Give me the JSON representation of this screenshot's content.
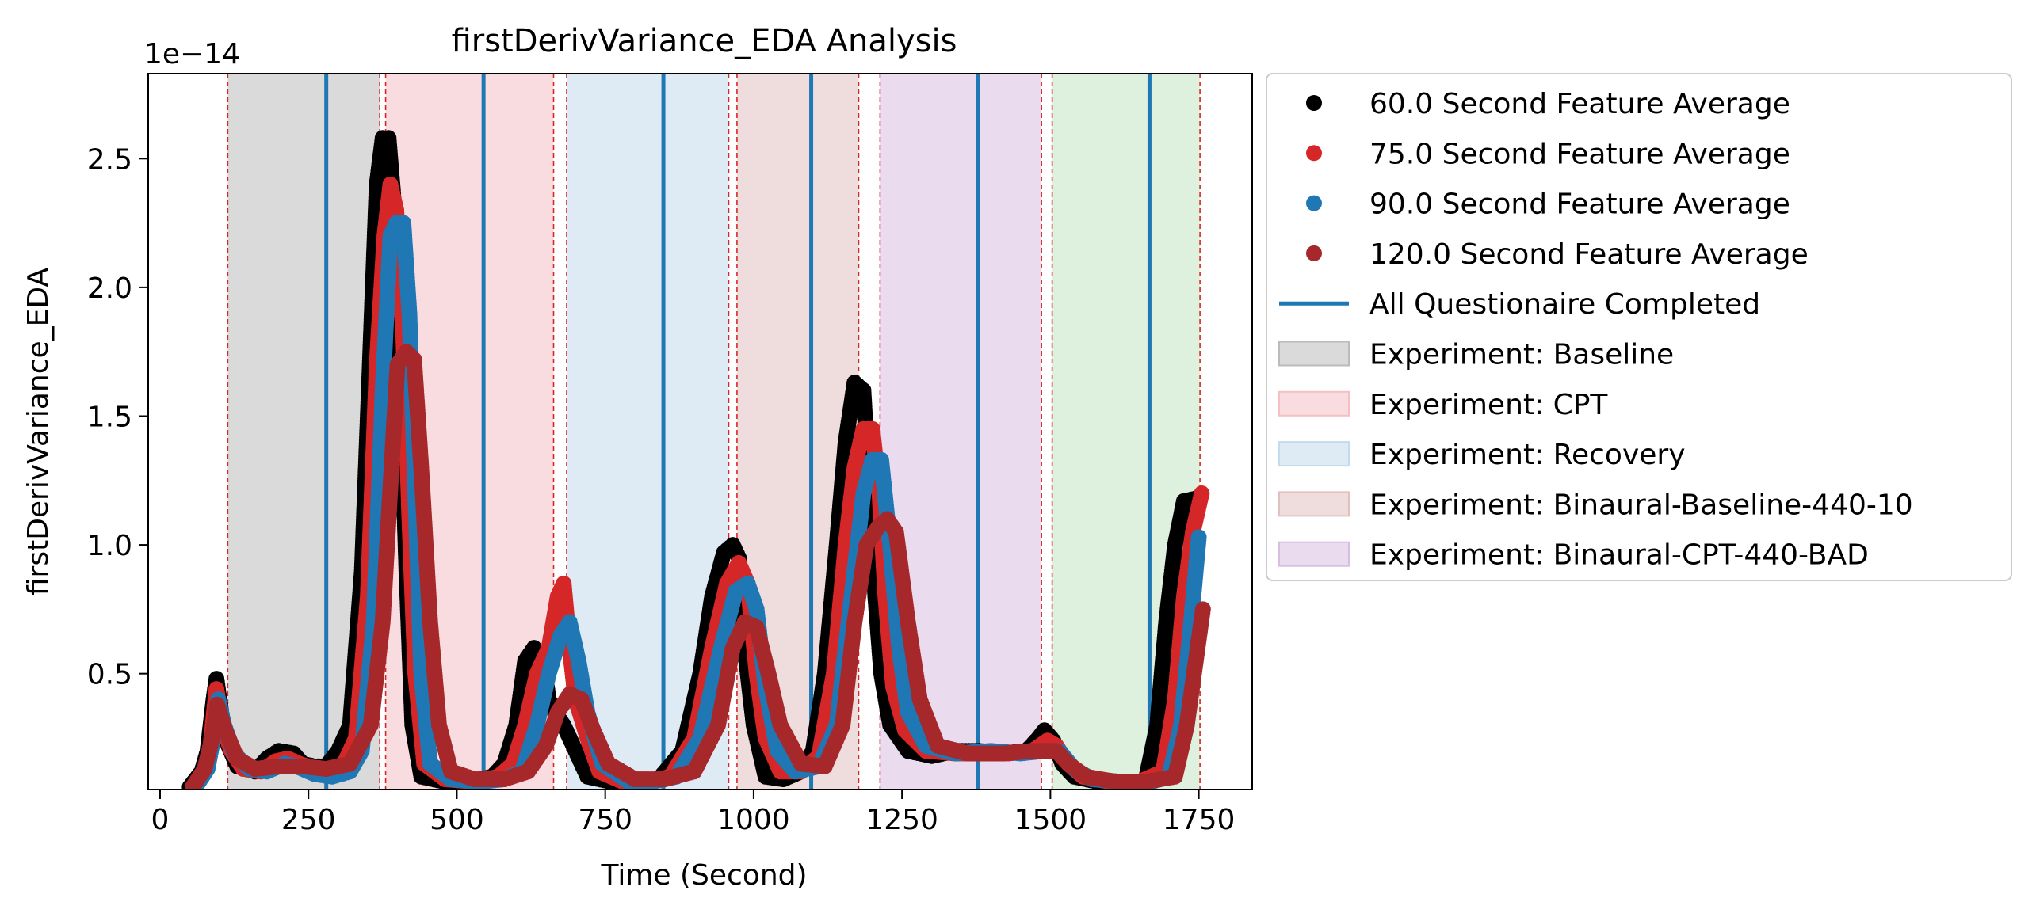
{
  "chart_data": {
    "type": "scatter",
    "title": "firstDerivVariance_EDA Analysis",
    "xlabel": "Time (Second)",
    "ylabel": "firstDerivVariance_EDA",
    "y_offset_label": "1e−14",
    "xlim": [
      -20,
      1840
    ],
    "ylim": [
      0.05,
      2.83
    ],
    "xticks": [
      0,
      250,
      500,
      750,
      1000,
      1250,
      1500,
      1750
    ],
    "xtick_labels": [
      "0",
      "250",
      "500",
      "750",
      "1000",
      "1250",
      "1500",
      "1750"
    ],
    "yticks": [
      0.5,
      1.0,
      1.5,
      2.0,
      2.5
    ],
    "ytick_labels": [
      "0.5",
      "1.0",
      "1.5",
      "2.0",
      "2.5"
    ],
    "grid": false,
    "legend_position": "outside-right",
    "series": [
      {
        "name": "60.0 Second Feature Average",
        "color": "#000000",
        "points": [
          [
            50,
            0.06
          ],
          [
            70,
            0.12
          ],
          [
            80,
            0.2
          ],
          [
            90,
            0.4
          ],
          [
            95,
            0.48
          ],
          [
            105,
            0.32
          ],
          [
            115,
            0.22
          ],
          [
            130,
            0.14
          ],
          [
            160,
            0.12
          ],
          [
            180,
            0.17
          ],
          [
            200,
            0.2
          ],
          [
            225,
            0.19
          ],
          [
            240,
            0.15
          ],
          [
            260,
            0.14
          ],
          [
            280,
            0.14
          ],
          [
            300,
            0.2
          ],
          [
            320,
            0.3
          ],
          [
            340,
            0.9
          ],
          [
            355,
            1.8
          ],
          [
            365,
            2.4
          ],
          [
            375,
            2.58
          ],
          [
            385,
            2.58
          ],
          [
            395,
            2.3
          ],
          [
            405,
            1.6
          ],
          [
            415,
            0.9
          ],
          [
            425,
            0.3
          ],
          [
            440,
            0.1
          ],
          [
            480,
            0.08
          ],
          [
            520,
            0.08
          ],
          [
            560,
            0.1
          ],
          [
            580,
            0.15
          ],
          [
            600,
            0.3
          ],
          [
            615,
            0.55
          ],
          [
            630,
            0.6
          ],
          [
            645,
            0.55
          ],
          [
            655,
            0.4
          ],
          [
            665,
            0.35
          ],
          [
            680,
            0.3
          ],
          [
            700,
            0.2
          ],
          [
            720,
            0.1
          ],
          [
            760,
            0.08
          ],
          [
            800,
            0.08
          ],
          [
            840,
            0.09
          ],
          [
            880,
            0.2
          ],
          [
            910,
            0.5
          ],
          [
            930,
            0.8
          ],
          [
            950,
            0.97
          ],
          [
            965,
            1.0
          ],
          [
            975,
            0.95
          ],
          [
            985,
            0.6
          ],
          [
            1000,
            0.3
          ],
          [
            1020,
            0.1
          ],
          [
            1050,
            0.09
          ],
          [
            1080,
            0.12
          ],
          [
            1100,
            0.2
          ],
          [
            1120,
            0.5
          ],
          [
            1140,
            1.0
          ],
          [
            1155,
            1.4
          ],
          [
            1170,
            1.63
          ],
          [
            1185,
            1.6
          ],
          [
            1195,
            1.2
          ],
          [
            1205,
            0.8
          ],
          [
            1215,
            0.5
          ],
          [
            1230,
            0.3
          ],
          [
            1260,
            0.2
          ],
          [
            1300,
            0.18
          ],
          [
            1340,
            0.2
          ],
          [
            1380,
            0.2
          ],
          [
            1420,
            0.19
          ],
          [
            1460,
            0.2
          ],
          [
            1480,
            0.25
          ],
          [
            1490,
            0.28
          ],
          [
            1505,
            0.24
          ],
          [
            1520,
            0.15
          ],
          [
            1540,
            0.1
          ],
          [
            1580,
            0.08
          ],
          [
            1620,
            0.08
          ],
          [
            1660,
            0.08
          ],
          [
            1680,
            0.3
          ],
          [
            1695,
            0.7
          ],
          [
            1710,
            1.0
          ],
          [
            1725,
            1.17
          ],
          [
            1745,
            1.18
          ]
        ]
      },
      {
        "name": "75.0 Second Feature Average",
        "color": "#d62728",
        "points": [
          [
            55,
            0.06
          ],
          [
            75,
            0.12
          ],
          [
            85,
            0.22
          ],
          [
            95,
            0.44
          ],
          [
            105,
            0.3
          ],
          [
            120,
            0.2
          ],
          [
            140,
            0.13
          ],
          [
            170,
            0.12
          ],
          [
            195,
            0.16
          ],
          [
            215,
            0.17
          ],
          [
            235,
            0.15
          ],
          [
            260,
            0.13
          ],
          [
            290,
            0.13
          ],
          [
            310,
            0.15
          ],
          [
            330,
            0.25
          ],
          [
            350,
            0.8
          ],
          [
            365,
            1.7
          ],
          [
            378,
            2.2
          ],
          [
            388,
            2.4
          ],
          [
            398,
            2.3
          ],
          [
            410,
            1.8
          ],
          [
            420,
            1.1
          ],
          [
            430,
            0.5
          ],
          [
            445,
            0.15
          ],
          [
            480,
            0.09
          ],
          [
            530,
            0.08
          ],
          [
            570,
            0.1
          ],
          [
            595,
            0.15
          ],
          [
            615,
            0.3
          ],
          [
            635,
            0.5
          ],
          [
            655,
            0.6
          ],
          [
            670,
            0.8
          ],
          [
            680,
            0.85
          ],
          [
            690,
            0.6
          ],
          [
            700,
            0.4
          ],
          [
            720,
            0.25
          ],
          [
            740,
            0.12
          ],
          [
            780,
            0.08
          ],
          [
            820,
            0.08
          ],
          [
            860,
            0.1
          ],
          [
            900,
            0.25
          ],
          [
            930,
            0.6
          ],
          [
            955,
            0.85
          ],
          [
            975,
            0.93
          ],
          [
            990,
            0.85
          ],
          [
            1005,
            0.5
          ],
          [
            1020,
            0.25
          ],
          [
            1045,
            0.12
          ],
          [
            1080,
            0.12
          ],
          [
            1110,
            0.18
          ],
          [
            1135,
            0.5
          ],
          [
            1155,
            1.0
          ],
          [
            1170,
            1.3
          ],
          [
            1185,
            1.45
          ],
          [
            1200,
            1.45
          ],
          [
            1212,
            1.2
          ],
          [
            1222,
            0.8
          ],
          [
            1235,
            0.45
          ],
          [
            1255,
            0.28
          ],
          [
            1290,
            0.2
          ],
          [
            1340,
            0.19
          ],
          [
            1380,
            0.19
          ],
          [
            1430,
            0.19
          ],
          [
            1470,
            0.2
          ],
          [
            1495,
            0.24
          ],
          [
            1510,
            0.22
          ],
          [
            1530,
            0.15
          ],
          [
            1555,
            0.1
          ],
          [
            1600,
            0.08
          ],
          [
            1650,
            0.08
          ],
          [
            1690,
            0.12
          ],
          [
            1710,
            0.4
          ],
          [
            1725,
            0.8
          ],
          [
            1740,
            1.05
          ],
          [
            1755,
            1.2
          ]
        ]
      },
      {
        "name": "90.0 Second Feature Average",
        "color": "#1f77b4",
        "points": [
          [
            60,
            0.06
          ],
          [
            80,
            0.13
          ],
          [
            90,
            0.25
          ],
          [
            98,
            0.4
          ],
          [
            108,
            0.3
          ],
          [
            125,
            0.19
          ],
          [
            150,
            0.13
          ],
          [
            180,
            0.12
          ],
          [
            210,
            0.15
          ],
          [
            230,
            0.14
          ],
          [
            260,
            0.11
          ],
          [
            290,
            0.1
          ],
          [
            320,
            0.12
          ],
          [
            340,
            0.2
          ],
          [
            360,
            0.7
          ],
          [
            375,
            1.6
          ],
          [
            388,
            2.2
          ],
          [
            398,
            2.25
          ],
          [
            410,
            2.25
          ],
          [
            420,
            1.9
          ],
          [
            430,
            1.2
          ],
          [
            440,
            0.5
          ],
          [
            455,
            0.15
          ],
          [
            490,
            0.09
          ],
          [
            540,
            0.08
          ],
          [
            580,
            0.09
          ],
          [
            610,
            0.12
          ],
          [
            635,
            0.3
          ],
          [
            655,
            0.5
          ],
          [
            675,
            0.65
          ],
          [
            690,
            0.7
          ],
          [
            705,
            0.55
          ],
          [
            720,
            0.35
          ],
          [
            745,
            0.15
          ],
          [
            790,
            0.08
          ],
          [
            830,
            0.08
          ],
          [
            870,
            0.1
          ],
          [
            910,
            0.25
          ],
          [
            945,
            0.6
          ],
          [
            970,
            0.82
          ],
          [
            990,
            0.85
          ],
          [
            1005,
            0.75
          ],
          [
            1020,
            0.45
          ],
          [
            1040,
            0.2
          ],
          [
            1070,
            0.12
          ],
          [
            1110,
            0.14
          ],
          [
            1140,
            0.3
          ],
          [
            1165,
            0.8
          ],
          [
            1185,
            1.2
          ],
          [
            1200,
            1.33
          ],
          [
            1215,
            1.33
          ],
          [
            1230,
            1.0
          ],
          [
            1245,
            0.6
          ],
          [
            1260,
            0.35
          ],
          [
            1290,
            0.22
          ],
          [
            1340,
            0.19
          ],
          [
            1400,
            0.2
          ],
          [
            1450,
            0.19
          ],
          [
            1490,
            0.2
          ],
          [
            1515,
            0.2
          ],
          [
            1540,
            0.13
          ],
          [
            1570,
            0.09
          ],
          [
            1620,
            0.08
          ],
          [
            1670,
            0.08
          ],
          [
            1700,
            0.1
          ],
          [
            1720,
            0.3
          ],
          [
            1735,
            0.65
          ],
          [
            1750,
            1.03
          ]
        ]
      },
      {
        "name": "120.0 Second Feature Average",
        "color": "#a6282b",
        "points": [
          [
            55,
            0.06
          ],
          [
            75,
            0.13
          ],
          [
            88,
            0.25
          ],
          [
            96,
            0.38
          ],
          [
            110,
            0.28
          ],
          [
            130,
            0.17
          ],
          [
            160,
            0.13
          ],
          [
            200,
            0.14
          ],
          [
            240,
            0.14
          ],
          [
            280,
            0.13
          ],
          [
            320,
            0.15
          ],
          [
            355,
            0.3
          ],
          [
            375,
            0.7
          ],
          [
            390,
            1.3
          ],
          [
            400,
            1.7
          ],
          [
            415,
            1.75
          ],
          [
            428,
            1.72
          ],
          [
            440,
            1.3
          ],
          [
            455,
            0.7
          ],
          [
            470,
            0.3
          ],
          [
            490,
            0.12
          ],
          [
            530,
            0.09
          ],
          [
            580,
            0.09
          ],
          [
            620,
            0.12
          ],
          [
            650,
            0.22
          ],
          [
            670,
            0.35
          ],
          [
            690,
            0.42
          ],
          [
            710,
            0.4
          ],
          [
            730,
            0.28
          ],
          [
            755,
            0.15
          ],
          [
            800,
            0.09
          ],
          [
            850,
            0.09
          ],
          [
            900,
            0.12
          ],
          [
            940,
            0.3
          ],
          [
            965,
            0.6
          ],
          [
            985,
            0.7
          ],
          [
            1005,
            0.68
          ],
          [
            1025,
            0.5
          ],
          [
            1045,
            0.3
          ],
          [
            1080,
            0.15
          ],
          [
            1120,
            0.14
          ],
          [
            1150,
            0.3
          ],
          [
            1170,
            0.7
          ],
          [
            1190,
            1.0
          ],
          [
            1210,
            1.07
          ],
          [
            1225,
            1.1
          ],
          [
            1240,
            1.05
          ],
          [
            1260,
            0.7
          ],
          [
            1280,
            0.4
          ],
          [
            1310,
            0.22
          ],
          [
            1360,
            0.19
          ],
          [
            1420,
            0.19
          ],
          [
            1470,
            0.2
          ],
          [
            1510,
            0.2
          ],
          [
            1530,
            0.15
          ],
          [
            1560,
            0.1
          ],
          [
            1610,
            0.08
          ],
          [
            1660,
            0.08
          ],
          [
            1710,
            0.1
          ],
          [
            1730,
            0.3
          ],
          [
            1745,
            0.55
          ],
          [
            1757,
            0.75
          ]
        ]
      }
    ],
    "vlines": {
      "name": "All Questionaire Completed",
      "color": "#1f77b4",
      "x": [
        280,
        545,
        848,
        1097,
        1378,
        1667
      ]
    },
    "boundary_lines": {
      "color": "#d62728",
      "x": [
        114,
        370,
        380,
        663,
        685,
        958,
        972,
        1177,
        1213,
        1485,
        1503,
        1752
      ]
    },
    "spans": [
      {
        "name": "Experiment: Baseline",
        "start": 114,
        "end": 370,
        "color": "#bbbbbb",
        "in_legend": true
      },
      {
        "name": "Experiment: CPT",
        "start": 380,
        "end": 663,
        "color": "#f4c0c4",
        "in_legend": true
      },
      {
        "name": "Experiment: Recovery",
        "start": 685,
        "end": 958,
        "color": "#c3dbec",
        "in_legend": true
      },
      {
        "name": "Experiment: Binaural-Baseline-440-10",
        "start": 972,
        "end": 1177,
        "color": "#e2c0c0",
        "in_legend": true
      },
      {
        "name": "Experiment: Binaural-CPT-440-BAD",
        "start": 1213,
        "end": 1485,
        "color": "#d8bfe0",
        "in_legend": true
      },
      {
        "name": "",
        "start": 1503,
        "end": 1752,
        "color": "#c2e5c2",
        "in_legend": false
      }
    ]
  }
}
